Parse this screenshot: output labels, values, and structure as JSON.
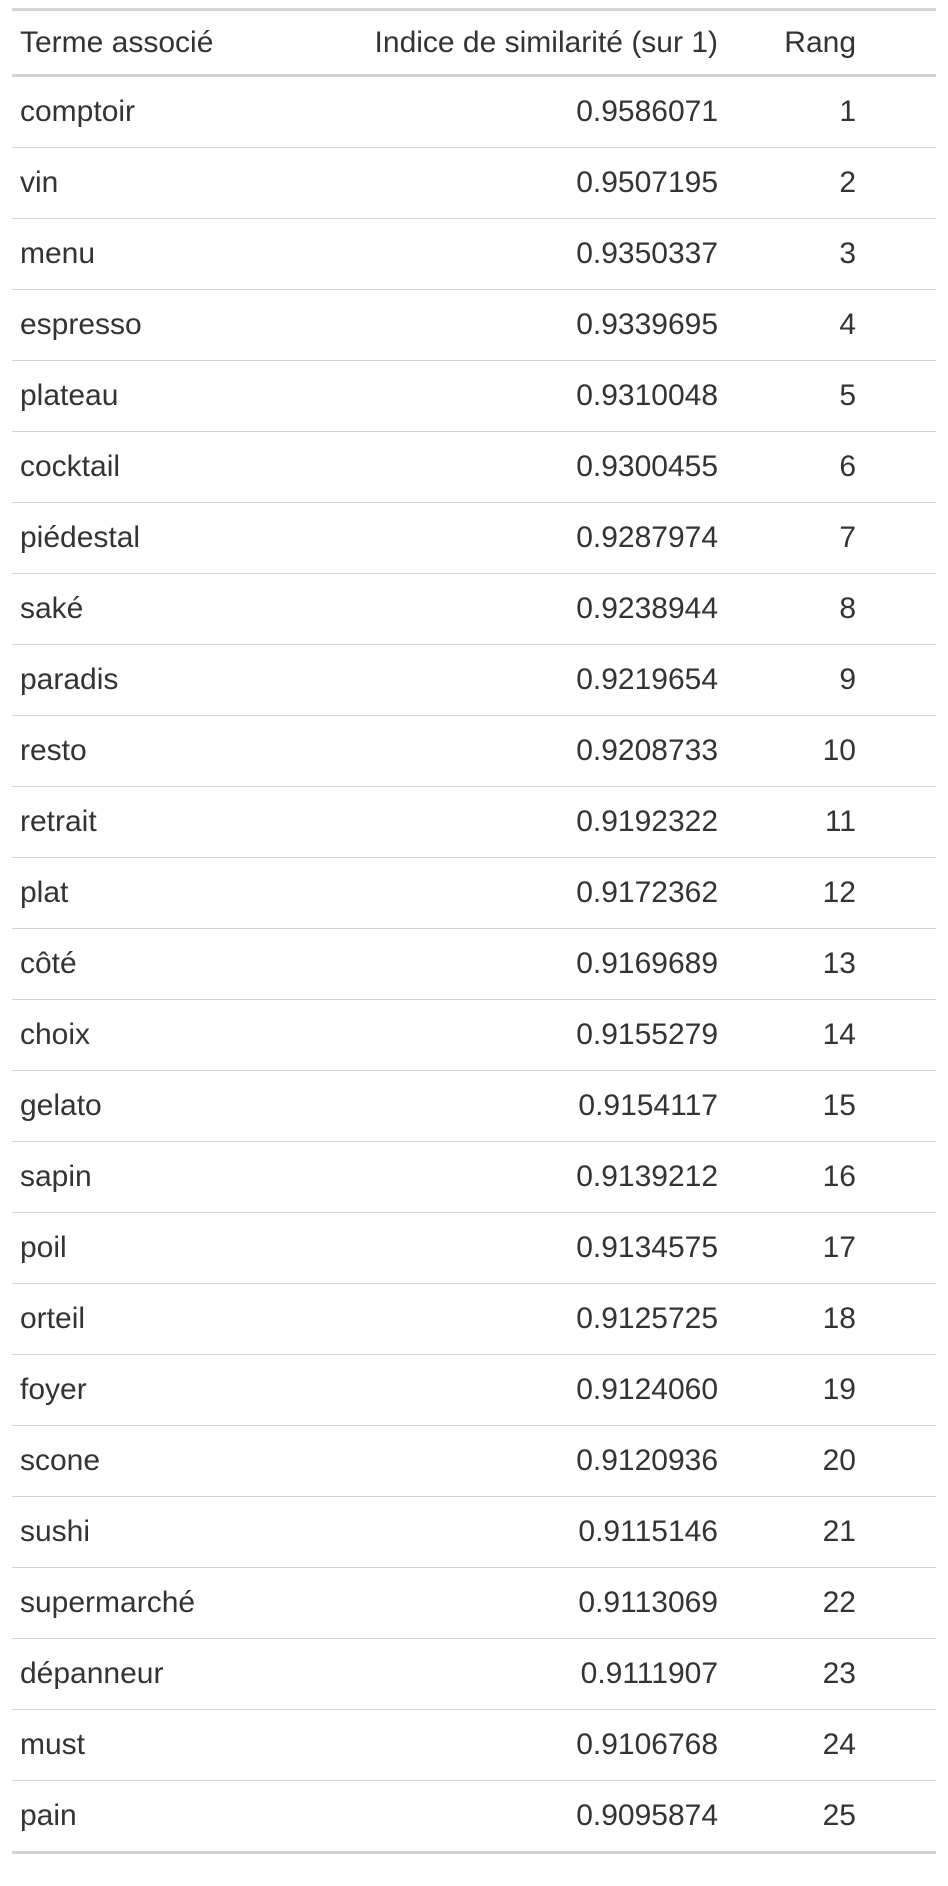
{
  "table": {
    "headers": [
      "Terme associé",
      "Indice de similarité (sur 1)",
      "Rang"
    ],
    "rows": [
      [
        "comptoir",
        "0.9586071",
        "1"
      ],
      [
        "vin",
        "0.9507195",
        "2"
      ],
      [
        "menu",
        "0.9350337",
        "3"
      ],
      [
        "espresso",
        "0.9339695",
        "4"
      ],
      [
        "plateau",
        "0.9310048",
        "5"
      ],
      [
        "cocktail",
        "0.9300455",
        "6"
      ],
      [
        "piédestal",
        "0.9287974",
        "7"
      ],
      [
        "saké",
        "0.9238944",
        "8"
      ],
      [
        "paradis",
        "0.9219654",
        "9"
      ],
      [
        "resto",
        "0.9208733",
        "10"
      ],
      [
        "retrait",
        "0.9192322",
        "11"
      ],
      [
        "plat",
        "0.9172362",
        "12"
      ],
      [
        "côté",
        "0.9169689",
        "13"
      ],
      [
        "choix",
        "0.9155279",
        "14"
      ],
      [
        "gelato",
        "0.9154117",
        "15"
      ],
      [
        "sapin",
        "0.9139212",
        "16"
      ],
      [
        "poil",
        "0.9134575",
        "17"
      ],
      [
        "orteil",
        "0.9125725",
        "18"
      ],
      [
        "foyer",
        "0.9124060",
        "19"
      ],
      [
        "scone",
        "0.9120936",
        "20"
      ],
      [
        "sushi",
        "0.9115146",
        "21"
      ],
      [
        "supermarché",
        "0.9113069",
        "22"
      ],
      [
        "dépanneur",
        "0.9111907",
        "23"
      ],
      [
        "must",
        "0.9106768",
        "24"
      ],
      [
        "pain",
        "0.9095874",
        "25"
      ]
    ]
  },
  "colors": {
    "text": "#333333",
    "rule": "#d3d3d3",
    "background": "#ffffff"
  }
}
